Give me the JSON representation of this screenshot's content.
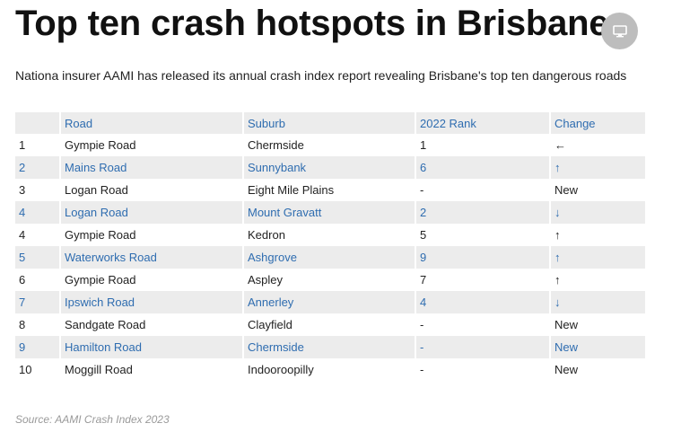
{
  "header": {
    "title": "Top ten crash hotspots in Brisbane",
    "subtitle": "Nationa insurer AAMI has released its annual crash index report revealing Brisbane's top ten dangerous roads",
    "screen_icon": "monitor-icon"
  },
  "table": {
    "columns": [
      "",
      "Road",
      "Suburb",
      "2022 Rank",
      "Change"
    ],
    "rows": [
      {
        "rank": "1",
        "road": "Gympie Road",
        "suburb": "Chermside",
        "rank2022": "1",
        "change": "←"
      },
      {
        "rank": "2",
        "road": "Mains Road",
        "suburb": "Sunnybank",
        "rank2022": "6",
        "change": "↑"
      },
      {
        "rank": "3",
        "road": "Logan Road",
        "suburb": "Eight Mile Plains",
        "rank2022": "-",
        "change": "New"
      },
      {
        "rank": "4",
        "road": "Logan Road",
        "suburb": "Mount Gravatt",
        "rank2022": "2",
        "change": "↓"
      },
      {
        "rank": "4",
        "road": "Gympie Road",
        "suburb": "Kedron",
        "rank2022": "5",
        "change": "↑"
      },
      {
        "rank": "5",
        "road": "Waterworks Road",
        "suburb": "Ashgrove",
        "rank2022": "9",
        "change": "↑"
      },
      {
        "rank": "6",
        "road": "Gympie Road",
        "suburb": "Aspley",
        "rank2022": "7",
        "change": "↑"
      },
      {
        "rank": "7",
        "road": "Ipswich Road",
        "suburb": "Annerley",
        "rank2022": "4",
        "change": "↓"
      },
      {
        "rank": "8",
        "road": "Sandgate Road",
        "suburb": "Clayfield",
        "rank2022": "-",
        "change": "New"
      },
      {
        "rank": "9",
        "road": "Hamilton Road",
        "suburb": "Chermside",
        "rank2022": "-",
        "change": "New"
      },
      {
        "rank": "10",
        "road": "Moggill Road",
        "suburb": "Indooroopilly",
        "rank2022": "-",
        "change": "New"
      }
    ]
  },
  "footer": {
    "source": "Source: AAMI Crash Index 2023"
  },
  "colors": {
    "header_bg": "#ececec",
    "link_blue": "#2f6db0",
    "source_gray": "#9a9a9a"
  }
}
